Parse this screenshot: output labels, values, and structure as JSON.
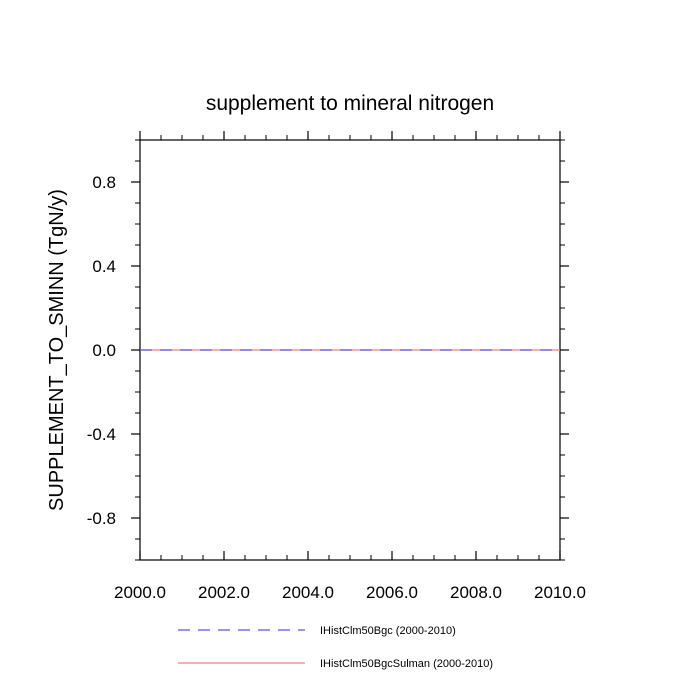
{
  "chart_data": {
    "type": "line",
    "title": "supplement to mineral nitrogen",
    "ylabel": "SUPPLEMENT_TO_SMINN  (TgN/y)",
    "xlabel": "",
    "xlim": [
      2000,
      2010
    ],
    "ylim": [
      -1.0,
      1.0
    ],
    "x_ticks": [
      "2000.0",
      "2002.0",
      "2004.0",
      "2006.0",
      "2008.0",
      "2010.0"
    ],
    "y_ticks": [
      "-0.8",
      "-0.4",
      "0.0",
      "0.4",
      "0.8"
    ],
    "legend_position": "bottom",
    "grid": false,
    "series": [
      {
        "name": "IHistClm50Bgc (2000-2010)",
        "color": "#5a55d6",
        "style": "dashed",
        "x": [
          2000,
          2001,
          2002,
          2003,
          2004,
          2005,
          2006,
          2007,
          2008,
          2009,
          2010
        ],
        "y": [
          0,
          0,
          0,
          0,
          0,
          0,
          0,
          0,
          0,
          0,
          0
        ]
      },
      {
        "name": "IHistClm50BgcSulman (2000-2010)",
        "color": "#f08080",
        "style": "solid",
        "x": [
          2000,
          2001,
          2002,
          2003,
          2004,
          2005,
          2006,
          2007,
          2008,
          2009,
          2010
        ],
        "y": [
          0,
          0,
          0,
          0,
          0,
          0,
          0,
          0,
          0,
          0,
          0
        ]
      }
    ]
  }
}
